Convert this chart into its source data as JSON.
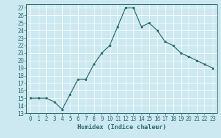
{
  "x": [
    0,
    1,
    2,
    3,
    4,
    5,
    6,
    7,
    8,
    9,
    10,
    11,
    12,
    13,
    14,
    15,
    16,
    17,
    18,
    19,
    20,
    21,
    22,
    23
  ],
  "y": [
    15,
    15,
    15,
    14.5,
    13.5,
    15.5,
    17.5,
    17.5,
    19.5,
    21,
    22,
    24.5,
    27,
    27,
    24.5,
    25,
    24,
    22.5,
    22,
    21,
    20.5,
    20,
    19.5,
    19
  ],
  "line_color": "#2a6b6b",
  "marker": "o",
  "marker_size": 2,
  "bg_color": "#cce8f0",
  "grid_color": "#ffffff",
  "xlabel": "Humidex (Indice chaleur)",
  "ylim": [
    13,
    27.5
  ],
  "yticks": [
    13,
    14,
    15,
    16,
    17,
    18,
    19,
    20,
    21,
    22,
    23,
    24,
    25,
    26,
    27
  ],
  "xticks": [
    0,
    1,
    2,
    3,
    4,
    5,
    6,
    7,
    8,
    9,
    10,
    11,
    12,
    13,
    14,
    15,
    16,
    17,
    18,
    19,
    20,
    21,
    22,
    23
  ],
  "xlim": [
    -0.5,
    23.5
  ],
  "font_color": "#2a6b6b",
  "tick_fontsize": 5.5,
  "xlabel_fontsize": 6.5,
  "linewidth": 0.9
}
